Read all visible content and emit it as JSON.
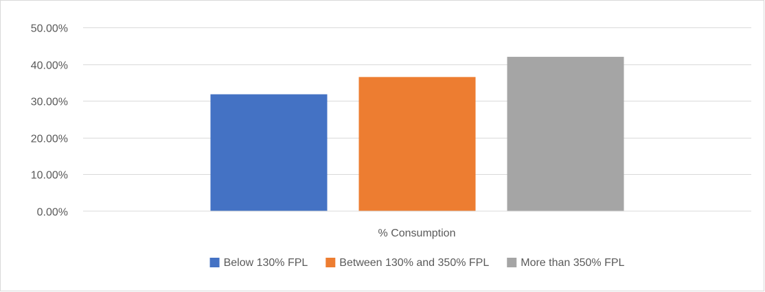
{
  "chart_data": {
    "type": "bar",
    "categories": [
      "% Consumption"
    ],
    "series": [
      {
        "name": "Below 130% FPL",
        "values": [
          0.318
        ],
        "color": "#4472c4"
      },
      {
        "name": "Between 130% and 350% FPL",
        "values": [
          0.365
        ],
        "color": "#ed7d31"
      },
      {
        "name": "More than 350% FPL",
        "values": [
          0.42
        ],
        "color": "#a5a5a5"
      }
    ],
    "ylim": [
      0,
      0.5
    ],
    "yticks": [
      0,
      0.1,
      0.2,
      0.3,
      0.4,
      0.5
    ],
    "ytick_labels": [
      "0.00%",
      "10.00%",
      "20.00%",
      "30.00%",
      "40.00%",
      "50.00%"
    ],
    "grid": true,
    "legend_position": "bottom",
    "title": "",
    "xlabel": "",
    "ylabel": ""
  }
}
